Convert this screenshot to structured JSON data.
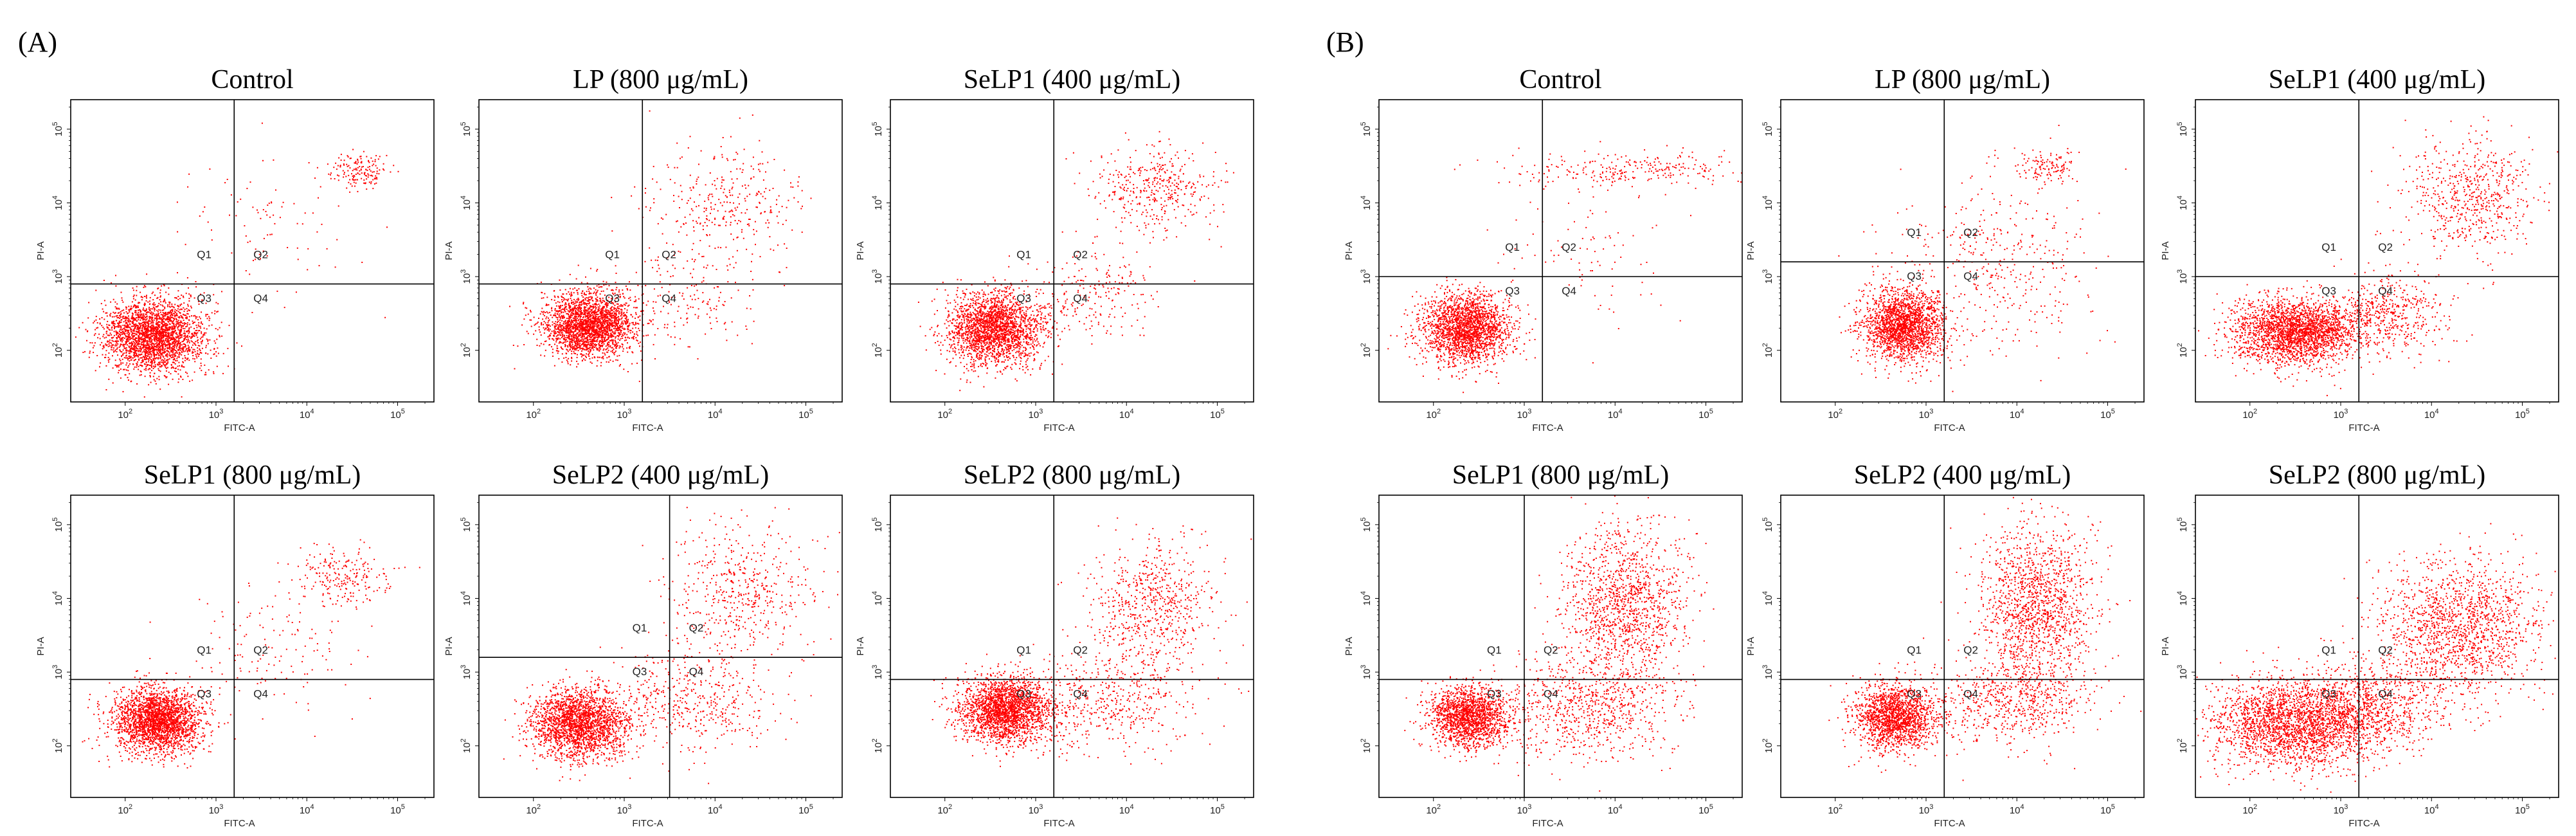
{
  "figure": {
    "panel_labels": [
      "(A)",
      "(B)"
    ],
    "axis": {
      "xlabel": "FITC-A",
      "ylabel": "PI-A",
      "x_ticks": [
        "10^2",
        "10^3",
        "10^4",
        "10^5"
      ],
      "y_ticks": [
        "10^2",
        "10^3",
        "10^4",
        "10^5"
      ]
    },
    "quadrants": [
      "Q1",
      "Q2",
      "Q3",
      "Q4"
    ],
    "point_color": "#ff0000"
  },
  "chart_data": [
    {
      "type": "scatter",
      "group": "A",
      "title": "Control",
      "xlabel": "FITC-A",
      "ylabel": "PI-A",
      "xlim": [
        1.4,
        5.4
      ],
      "ylim": [
        1.3,
        5.4
      ],
      "gate": {
        "x": 3.2,
        "y": 2.9
      },
      "clusters": [
        {
          "x": 2.3,
          "y": 2.2,
          "sx": 0.28,
          "sy": 0.25,
          "n": 2600
        },
        {
          "x": 4.55,
          "y": 4.45,
          "sx": 0.15,
          "sy": 0.12,
          "n": 160
        },
        {
          "x": 3.6,
          "y": 3.7,
          "sx": 0.45,
          "sy": 0.45,
          "n": 90
        }
      ]
    },
    {
      "type": "scatter",
      "group": "A",
      "title": "LP (800 μg/mL)",
      "xlabel": "FITC-A",
      "ylabel": "PI-A",
      "xlim": [
        1.4,
        5.4
      ],
      "ylim": [
        1.3,
        5.4
      ],
      "gate": {
        "x": 3.2,
        "y": 2.9
      },
      "clusters": [
        {
          "x": 2.6,
          "y": 2.35,
          "sx": 0.25,
          "sy": 0.22,
          "n": 2400
        },
        {
          "x": 4.1,
          "y": 4.0,
          "sx": 0.45,
          "sy": 0.4,
          "n": 330
        },
        {
          "x": 3.7,
          "y": 2.7,
          "sx": 0.4,
          "sy": 0.35,
          "n": 180
        }
      ]
    },
    {
      "type": "scatter",
      "group": "A",
      "title": "SeLP1 (400 μg/mL)",
      "xlabel": "FITC-A",
      "ylabel": "PI-A",
      "xlim": [
        1.4,
        5.4
      ],
      "ylim": [
        1.3,
        5.4
      ],
      "gate": {
        "x": 3.2,
        "y": 2.9
      },
      "clusters": [
        {
          "x": 2.55,
          "y": 2.3,
          "sx": 0.26,
          "sy": 0.24,
          "n": 2200
        },
        {
          "x": 4.3,
          "y": 4.2,
          "sx": 0.32,
          "sy": 0.3,
          "n": 400
        },
        {
          "x": 3.6,
          "y": 2.8,
          "sx": 0.35,
          "sy": 0.3,
          "n": 220
        }
      ]
    },
    {
      "type": "scatter",
      "group": "A",
      "title": "SeLP1 (800 μg/mL)",
      "xlabel": "FITC-A",
      "ylabel": "PI-A",
      "xlim": [
        1.4,
        5.4
      ],
      "ylim": [
        1.3,
        5.4
      ],
      "gate": {
        "x": 3.2,
        "y": 2.9
      },
      "clusters": [
        {
          "x": 2.35,
          "y": 2.35,
          "sx": 0.24,
          "sy": 0.22,
          "n": 2400
        },
        {
          "x": 4.4,
          "y": 4.3,
          "sx": 0.25,
          "sy": 0.2,
          "n": 220
        },
        {
          "x": 3.6,
          "y": 3.3,
          "sx": 0.45,
          "sy": 0.45,
          "n": 140
        }
      ]
    },
    {
      "type": "scatter",
      "group": "A",
      "title": "SeLP2 (400 μg/mL)",
      "xlabel": "FITC-A",
      "ylabel": "PI-A",
      "xlim": [
        1.4,
        5.4
      ],
      "ylim": [
        1.3,
        5.4
      ],
      "gate": {
        "x": 3.5,
        "y": 3.2
      },
      "clusters": [
        {
          "x": 2.5,
          "y": 2.3,
          "sx": 0.26,
          "sy": 0.24,
          "n": 2200
        },
        {
          "x": 4.3,
          "y": 4.1,
          "sx": 0.4,
          "sy": 0.45,
          "n": 500
        },
        {
          "x": 3.8,
          "y": 2.6,
          "sx": 0.45,
          "sy": 0.35,
          "n": 450
        }
      ]
    },
    {
      "type": "scatter",
      "group": "A",
      "title": "SeLP2 (800 μg/mL)",
      "xlabel": "FITC-A",
      "ylabel": "PI-A",
      "xlim": [
        1.4,
        5.4
      ],
      "ylim": [
        1.3,
        5.4
      ],
      "gate": {
        "x": 3.2,
        "y": 2.9
      },
      "clusters": [
        {
          "x": 2.65,
          "y": 2.5,
          "sx": 0.25,
          "sy": 0.22,
          "n": 2200
        },
        {
          "x": 4.3,
          "y": 3.9,
          "sx": 0.35,
          "sy": 0.45,
          "n": 650
        },
        {
          "x": 3.8,
          "y": 2.6,
          "sx": 0.5,
          "sy": 0.35,
          "n": 500
        }
      ]
    },
    {
      "type": "scatter",
      "group": "B",
      "title": "Control",
      "xlabel": "FITC-A",
      "ylabel": "PI-A",
      "xlim": [
        1.4,
        5.4
      ],
      "ylim": [
        1.3,
        5.4
      ],
      "gate": {
        "x": 3.2,
        "y": 3.0
      },
      "clusters": [
        {
          "x": 2.35,
          "y": 2.3,
          "sx": 0.24,
          "sy": 0.24,
          "n": 2100
        },
        {
          "x": 4.15,
          "y": 4.45,
          "sx": 0.6,
          "sy": 0.12,
          "n": 260
        },
        {
          "x": 3.7,
          "y": 3.4,
          "sx": 0.5,
          "sy": 0.5,
          "n": 90
        }
      ]
    },
    {
      "type": "scatter",
      "group": "B",
      "title": "LP (800 μg/mL)",
      "xlabel": "FITC-A",
      "ylabel": "PI-A",
      "xlim": [
        1.4,
        5.4
      ],
      "ylim": [
        1.3,
        5.4
      ],
      "gate": {
        "x": 3.2,
        "y": 3.2
      },
      "clusters": [
        {
          "x": 2.75,
          "y": 2.35,
          "sx": 0.22,
          "sy": 0.25,
          "n": 2000
        },
        {
          "x": 4.35,
          "y": 4.5,
          "sx": 0.15,
          "sy": 0.12,
          "n": 120
        },
        {
          "x": 3.8,
          "y": 3.2,
          "sx": 0.55,
          "sy": 0.6,
          "n": 400
        }
      ]
    },
    {
      "type": "scatter",
      "group": "B",
      "title": "SeLP1 (400 μg/mL)",
      "xlabel": "FITC-A",
      "ylabel": "PI-A",
      "xlim": [
        1.4,
        5.4
      ],
      "ylim": [
        1.3,
        5.4
      ],
      "gate": {
        "x": 3.2,
        "y": 3.0
      },
      "clusters": [
        {
          "x": 2.5,
          "y": 2.25,
          "sx": 0.35,
          "sy": 0.22,
          "n": 2400
        },
        {
          "x": 4.4,
          "y": 4.1,
          "sx": 0.35,
          "sy": 0.4,
          "n": 600
        },
        {
          "x": 3.5,
          "y": 2.5,
          "sx": 0.35,
          "sy": 0.25,
          "n": 500
        }
      ]
    },
    {
      "type": "scatter",
      "group": "B",
      "title": "SeLP1 (800 μg/mL)",
      "xlabel": "FITC-A",
      "ylabel": "PI-A",
      "xlim": [
        1.4,
        5.4
      ],
      "ylim": [
        1.3,
        5.4
      ],
      "gate": {
        "x": 3.0,
        "y": 2.9
      },
      "clusters": [
        {
          "x": 2.4,
          "y": 2.4,
          "sx": 0.22,
          "sy": 0.2,
          "n": 1700
        },
        {
          "x": 4.1,
          "y": 3.9,
          "sx": 0.35,
          "sy": 0.55,
          "n": 1300
        },
        {
          "x": 3.7,
          "y": 2.5,
          "sx": 0.45,
          "sy": 0.35,
          "n": 700
        }
      ]
    },
    {
      "type": "scatter",
      "group": "B",
      "title": "SeLP2 (400 μg/mL)",
      "xlabel": "FITC-A",
      "ylabel": "PI-A",
      "xlim": [
        1.4,
        5.4
      ],
      "ylim": [
        1.3,
        5.4
      ],
      "gate": {
        "x": 3.2,
        "y": 2.9
      },
      "clusters": [
        {
          "x": 2.65,
          "y": 2.4,
          "sx": 0.22,
          "sy": 0.22,
          "n": 1700
        },
        {
          "x": 4.2,
          "y": 3.9,
          "sx": 0.3,
          "sy": 0.55,
          "n": 1400
        },
        {
          "x": 3.9,
          "y": 2.6,
          "sx": 0.45,
          "sy": 0.3,
          "n": 600
        }
      ]
    },
    {
      "type": "scatter",
      "group": "B",
      "title": "SeLP2 (800 μg/mL)",
      "xlabel": "FITC-A",
      "ylabel": "PI-A",
      "xlim": [
        1.4,
        5.4
      ],
      "ylim": [
        1.3,
        5.4
      ],
      "gate": {
        "x": 3.2,
        "y": 2.9
      },
      "clusters": [
        {
          "x": 2.5,
          "y": 2.3,
          "sx": 0.45,
          "sy": 0.3,
          "n": 2300
        },
        {
          "x": 4.3,
          "y": 3.6,
          "sx": 0.45,
          "sy": 0.45,
          "n": 1500
        },
        {
          "x": 3.3,
          "y": 2.5,
          "sx": 0.4,
          "sy": 0.3,
          "n": 800
        }
      ]
    }
  ]
}
